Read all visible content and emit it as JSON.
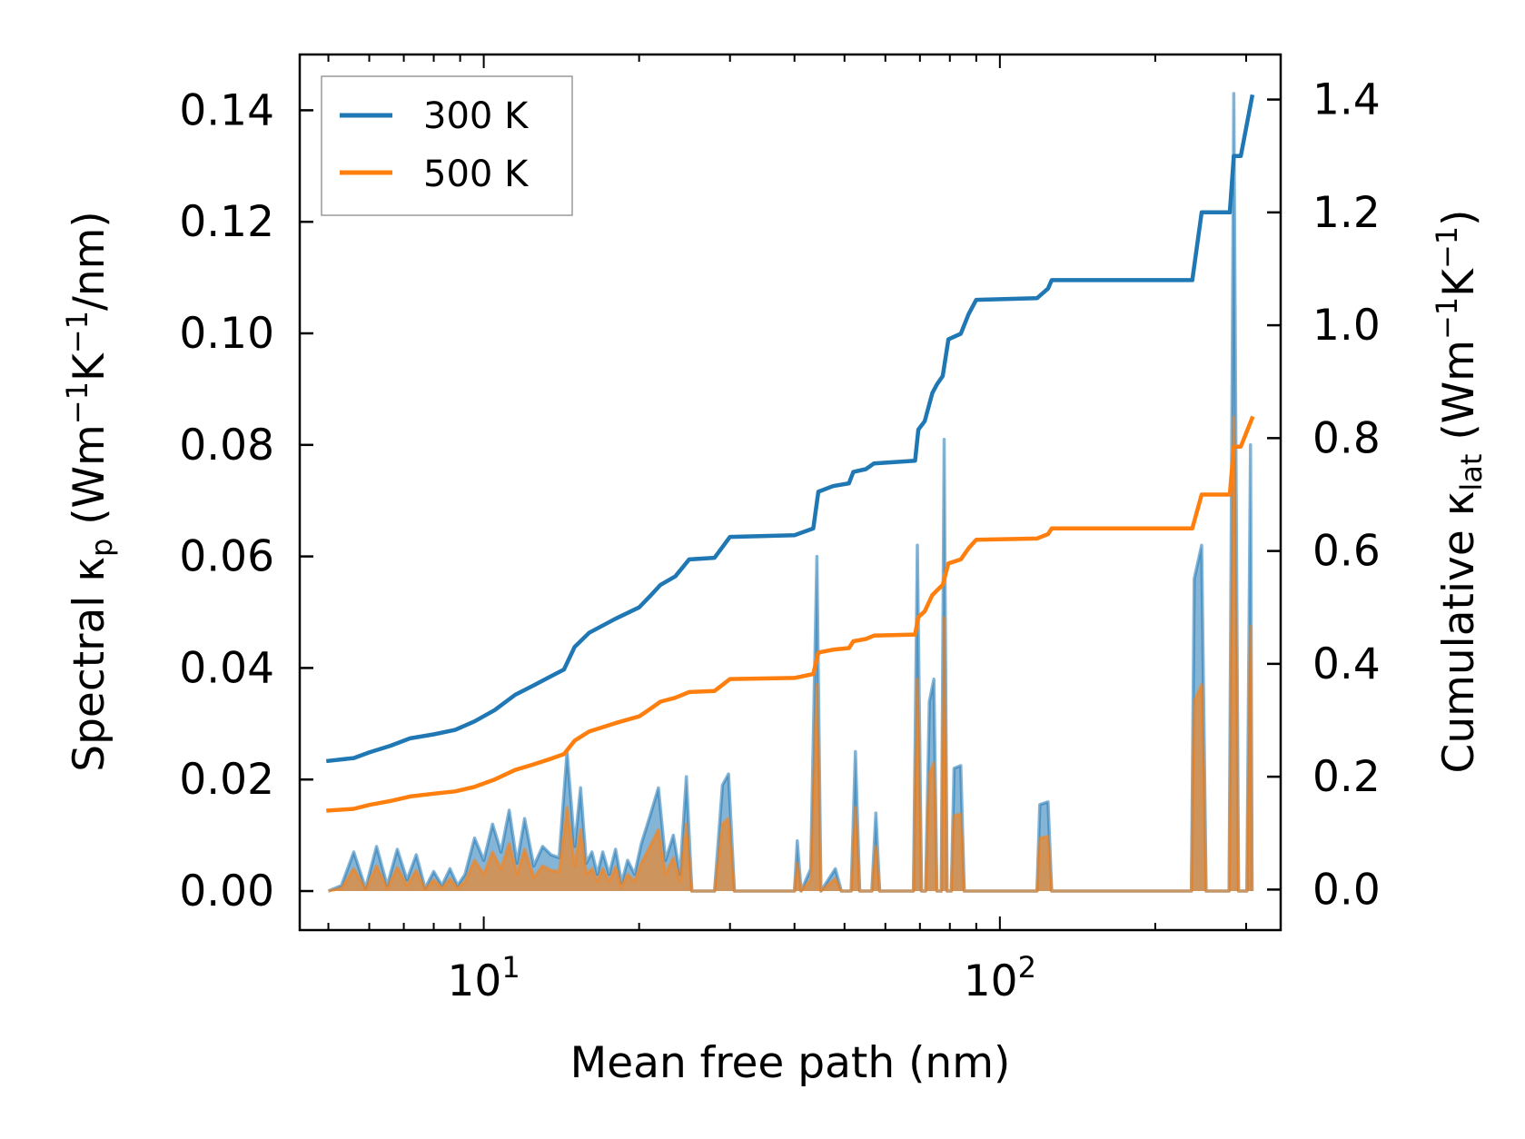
{
  "chart_data": {
    "type": "line+area",
    "xlabel": "Mean free path (nm)",
    "xscale": "log",
    "xlim": [
      4.4,
      350
    ],
    "x_tick_labels": [
      {
        "value": 10,
        "base": "10",
        "exp": "1"
      },
      {
        "value": 100,
        "base": "10",
        "exp": "2"
      }
    ],
    "ylabel_left": {
      "pre": "Spectral κ",
      "sub": "p",
      "mid": " (Wm",
      "sup1": "−1",
      "k": "K",
      "sup2": "−1",
      "post": "/nm)"
    },
    "ylabel_right": {
      "pre": "Cumulative κ",
      "sub": "lat",
      "mid": " (Wm",
      "sup1": "−1",
      "k": "K",
      "sup2": "−1",
      "post": ")"
    },
    "ylim_left": [
      -0.007,
      0.15
    ],
    "ylim_right": [
      -0.0718,
      1.4798
    ],
    "left_ticks": [
      {
        "value": 0.0,
        "label": "0.00"
      },
      {
        "value": 0.02,
        "label": "0.02"
      },
      {
        "value": 0.04,
        "label": "0.04"
      },
      {
        "value": 0.06,
        "label": "0.06"
      },
      {
        "value": 0.08,
        "label": "0.08"
      },
      {
        "value": 0.1,
        "label": "0.10"
      },
      {
        "value": 0.12,
        "label": "0.12"
      },
      {
        "value": 0.14,
        "label": "0.14"
      }
    ],
    "right_ticks": [
      {
        "value": 0.0,
        "label": "0.0"
      },
      {
        "value": 0.2,
        "label": "0.2"
      },
      {
        "value": 0.4,
        "label": "0.4"
      },
      {
        "value": 0.6,
        "label": "0.6"
      },
      {
        "value": 0.8,
        "label": "0.8"
      },
      {
        "value": 1.0,
        "label": "1.0"
      },
      {
        "value": 1.2,
        "label": "1.2"
      },
      {
        "value": 1.4,
        "label": "1.4"
      }
    ],
    "legend": {
      "position": "upper-left",
      "entries": [
        {
          "label": "300 K",
          "color": "#1f77b4"
        },
        {
          "label": "500 K",
          "color": "#ff7f0e"
        }
      ]
    },
    "series": [
      {
        "name": "300 K",
        "color": "#1f77b4",
        "spectral_axis": "left",
        "spectral": [
          [
            5.0,
            0.0
          ],
          [
            5.3,
            0.001
          ],
          [
            5.6,
            0.007
          ],
          [
            5.9,
            0.0005
          ],
          [
            6.2,
            0.008
          ],
          [
            6.5,
            0.001
          ],
          [
            6.8,
            0.0075
          ],
          [
            7.1,
            0.002
          ],
          [
            7.4,
            0.0065
          ],
          [
            7.7,
            0.0005
          ],
          [
            8.0,
            0.0035
          ],
          [
            8.3,
            0.001
          ],
          [
            8.6,
            0.004
          ],
          [
            8.9,
            0.001
          ],
          [
            9.2,
            0.003
          ],
          [
            9.6,
            0.0095
          ],
          [
            10.0,
            0.0055
          ],
          [
            10.4,
            0.012
          ],
          [
            10.8,
            0.007
          ],
          [
            11.2,
            0.0145
          ],
          [
            11.6,
            0.005
          ],
          [
            12.0,
            0.013
          ],
          [
            12.5,
            0.0045
          ],
          [
            13.0,
            0.008
          ],
          [
            13.5,
            0.0065
          ],
          [
            14.0,
            0.006
          ],
          [
            14.5,
            0.025
          ],
          [
            15.0,
            0.008
          ],
          [
            15.4,
            0.0185
          ],
          [
            15.8,
            0.005
          ],
          [
            16.2,
            0.007
          ],
          [
            16.6,
            0.003
          ],
          [
            17.0,
            0.007
          ],
          [
            17.5,
            0.003
          ],
          [
            18.0,
            0.0075
          ],
          [
            18.5,
            0.0015
          ],
          [
            19.0,
            0.0055
          ],
          [
            19.6,
            0.003
          ],
          [
            20.2,
            0.0085
          ],
          [
            21.0,
            0.0135
          ],
          [
            21.8,
            0.0185
          ],
          [
            22.5,
            0.0055
          ],
          [
            23.3,
            0.01
          ],
          [
            24.0,
            0.003
          ],
          [
            24.7,
            0.0205
          ],
          [
            25.3,
            0.0
          ],
          [
            28.0,
            0.0
          ],
          [
            29.0,
            0.019
          ],
          [
            29.8,
            0.021
          ],
          [
            30.6,
            0.0
          ],
          [
            40.0,
            0.0
          ],
          [
            40.5,
            0.009
          ],
          [
            41.2,
            0.0
          ],
          [
            43.0,
            0.004
          ],
          [
            44.2,
            0.06
          ],
          [
            45.0,
            0.0
          ],
          [
            48.0,
            0.004
          ],
          [
            49.3,
            0.0
          ],
          [
            51.5,
            0.0
          ],
          [
            52.5,
            0.025
          ],
          [
            53.5,
            0.0
          ],
          [
            56.5,
            0.0
          ],
          [
            57.5,
            0.014
          ],
          [
            58.5,
            0.0
          ],
          [
            68.0,
            0.0
          ],
          [
            69.2,
            0.062
          ],
          [
            70.5,
            0.0
          ],
          [
            71.8,
            0.0
          ],
          [
            73.0,
            0.034
          ],
          [
            74.5,
            0.038
          ],
          [
            75.5,
            0.0
          ],
          [
            77.0,
            0.0
          ],
          [
            78.0,
            0.081
          ],
          [
            79.0,
            0.0
          ],
          [
            80.5,
            0.0
          ],
          [
            81.5,
            0.022
          ],
          [
            84.0,
            0.0225
          ],
          [
            85.3,
            0.0
          ],
          [
            118.0,
            0.0
          ],
          [
            119.5,
            0.0155
          ],
          [
            124.0,
            0.016
          ],
          [
            126.0,
            0.0
          ],
          [
            235.0,
            0.0
          ],
          [
            238.0,
            0.056
          ],
          [
            246.0,
            0.062
          ],
          [
            251.0,
            0.0
          ],
          [
            278.0,
            0.0
          ],
          [
            284.0,
            0.143
          ],
          [
            290.0,
            0.0
          ],
          [
            301.0,
            0.0
          ],
          [
            306.0,
            0.08
          ],
          [
            308.0,
            0.0
          ]
        ],
        "cumulative_axis": "right",
        "cumulative": [
          [
            5.0,
            0.228
          ],
          [
            5.6,
            0.233
          ],
          [
            6.0,
            0.243
          ],
          [
            6.6,
            0.255
          ],
          [
            7.2,
            0.268
          ],
          [
            8.0,
            0.275
          ],
          [
            8.8,
            0.283
          ],
          [
            9.6,
            0.298
          ],
          [
            10.5,
            0.318
          ],
          [
            11.5,
            0.345
          ],
          [
            12.5,
            0.362
          ],
          [
            13.5,
            0.378
          ],
          [
            14.3,
            0.39
          ],
          [
            15.0,
            0.43
          ],
          [
            16.0,
            0.455
          ],
          [
            18.0,
            0.48
          ],
          [
            20.0,
            0.5
          ],
          [
            21.0,
            0.52
          ],
          [
            22.0,
            0.54
          ],
          [
            23.5,
            0.555
          ],
          [
            25.0,
            0.585
          ],
          [
            28.0,
            0.588
          ],
          [
            30.0,
            0.625
          ],
          [
            40.0,
            0.628
          ],
          [
            43.5,
            0.64
          ],
          [
            44.5,
            0.705
          ],
          [
            47.5,
            0.715
          ],
          [
            51.0,
            0.72
          ],
          [
            52.0,
            0.74
          ],
          [
            55.0,
            0.745
          ],
          [
            57.0,
            0.755
          ],
          [
            68.5,
            0.76
          ],
          [
            69.5,
            0.815
          ],
          [
            71.5,
            0.83
          ],
          [
            74.0,
            0.88
          ],
          [
            75.5,
            0.895
          ],
          [
            77.5,
            0.91
          ],
          [
            79.5,
            0.975
          ],
          [
            84.0,
            0.985
          ],
          [
            87.0,
            1.02
          ],
          [
            90.0,
            1.045
          ],
          [
            118.0,
            1.048
          ],
          [
            124.0,
            1.065
          ],
          [
            126.0,
            1.08
          ],
          [
            236.0,
            1.08
          ],
          [
            246.0,
            1.2
          ],
          [
            279.0,
            1.2
          ],
          [
            284.0,
            1.3
          ],
          [
            293.0,
            1.3
          ],
          [
            308.0,
            1.405
          ]
        ]
      },
      {
        "name": "500 K",
        "color": "#ff7f0e",
        "spectral_axis": "left",
        "spectral": [
          [
            5.0,
            0.0
          ],
          [
            5.3,
            0.0005
          ],
          [
            5.6,
            0.004
          ],
          [
            5.9,
            0.0003
          ],
          [
            6.2,
            0.0045
          ],
          [
            6.5,
            0.0005
          ],
          [
            6.8,
            0.0042
          ],
          [
            7.1,
            0.001
          ],
          [
            7.4,
            0.0037
          ],
          [
            7.7,
            0.0003
          ],
          [
            8.0,
            0.002
          ],
          [
            8.3,
            0.0005
          ],
          [
            8.6,
            0.0022
          ],
          [
            8.9,
            0.0005
          ],
          [
            9.2,
            0.0017
          ],
          [
            9.6,
            0.0055
          ],
          [
            10.0,
            0.003
          ],
          [
            10.4,
            0.007
          ],
          [
            10.8,
            0.004
          ],
          [
            11.2,
            0.0085
          ],
          [
            11.6,
            0.003
          ],
          [
            12.0,
            0.0075
          ],
          [
            12.5,
            0.0025
          ],
          [
            13.0,
            0.0045
          ],
          [
            13.5,
            0.0037
          ],
          [
            14.0,
            0.0035
          ],
          [
            14.5,
            0.015
          ],
          [
            15.0,
            0.0045
          ],
          [
            15.4,
            0.011
          ],
          [
            15.8,
            0.003
          ],
          [
            16.2,
            0.004
          ],
          [
            16.6,
            0.0017
          ],
          [
            17.0,
            0.004
          ],
          [
            17.5,
            0.0017
          ],
          [
            18.0,
            0.0043
          ],
          [
            18.5,
            0.0008
          ],
          [
            19.0,
            0.003
          ],
          [
            19.6,
            0.0017
          ],
          [
            20.2,
            0.005
          ],
          [
            21.0,
            0.008
          ],
          [
            21.8,
            0.011
          ],
          [
            22.5,
            0.003
          ],
          [
            23.3,
            0.006
          ],
          [
            24.0,
            0.0017
          ],
          [
            24.7,
            0.012
          ],
          [
            25.3,
            0.0
          ],
          [
            28.0,
            0.0
          ],
          [
            29.0,
            0.012
          ],
          [
            29.8,
            0.013
          ],
          [
            30.6,
            0.0
          ],
          [
            40.0,
            0.0
          ],
          [
            40.5,
            0.005
          ],
          [
            41.2,
            0.0
          ],
          [
            43.0,
            0.002
          ],
          [
            44.2,
            0.037
          ],
          [
            45.0,
            0.0
          ],
          [
            48.0,
            0.0022
          ],
          [
            49.3,
            0.0
          ],
          [
            51.5,
            0.0
          ],
          [
            52.5,
            0.015
          ],
          [
            53.5,
            0.0
          ],
          [
            56.5,
            0.0
          ],
          [
            57.5,
            0.008
          ],
          [
            58.5,
            0.0
          ],
          [
            68.0,
            0.0
          ],
          [
            69.2,
            0.038
          ],
          [
            70.5,
            0.0
          ],
          [
            71.8,
            0.0
          ],
          [
            73.0,
            0.021
          ],
          [
            74.5,
            0.023
          ],
          [
            75.5,
            0.0
          ],
          [
            77.0,
            0.0
          ],
          [
            78.0,
            0.049
          ],
          [
            79.0,
            0.0
          ],
          [
            80.5,
            0.0
          ],
          [
            81.5,
            0.0135
          ],
          [
            84.0,
            0.0138
          ],
          [
            85.3,
            0.0
          ],
          [
            118.0,
            0.0
          ],
          [
            119.5,
            0.0095
          ],
          [
            124.0,
            0.0098
          ],
          [
            126.0,
            0.0
          ],
          [
            235.0,
            0.0
          ],
          [
            238.0,
            0.034
          ],
          [
            246.0,
            0.037
          ],
          [
            251.0,
            0.0
          ],
          [
            278.0,
            0.0
          ],
          [
            284.0,
            0.085
          ],
          [
            290.0,
            0.0
          ],
          [
            301.0,
            0.0
          ],
          [
            306.0,
            0.0475
          ],
          [
            308.0,
            0.0
          ]
        ],
        "cumulative_axis": "right",
        "cumulative": [
          [
            5.0,
            0.14
          ],
          [
            5.6,
            0.143
          ],
          [
            6.0,
            0.15
          ],
          [
            6.6,
            0.157
          ],
          [
            7.2,
            0.165
          ],
          [
            8.0,
            0.17
          ],
          [
            8.8,
            0.174
          ],
          [
            9.6,
            0.182
          ],
          [
            10.5,
            0.195
          ],
          [
            11.5,
            0.212
          ],
          [
            12.5,
            0.222
          ],
          [
            13.5,
            0.232
          ],
          [
            14.3,
            0.24
          ],
          [
            15.0,
            0.264
          ],
          [
            16.0,
            0.28
          ],
          [
            18.0,
            0.295
          ],
          [
            20.0,
            0.307
          ],
          [
            21.0,
            0.32
          ],
          [
            22.0,
            0.333
          ],
          [
            23.5,
            0.34
          ],
          [
            25.0,
            0.35
          ],
          [
            28.0,
            0.352
          ],
          [
            30.0,
            0.373
          ],
          [
            40.0,
            0.375
          ],
          [
            43.5,
            0.382
          ],
          [
            44.5,
            0.42
          ],
          [
            47.5,
            0.425
          ],
          [
            51.0,
            0.428
          ],
          [
            52.0,
            0.44
          ],
          [
            55.0,
            0.444
          ],
          [
            57.0,
            0.45
          ],
          [
            68.5,
            0.452
          ],
          [
            69.5,
            0.483
          ],
          [
            71.5,
            0.493
          ],
          [
            74.0,
            0.522
          ],
          [
            75.5,
            0.53
          ],
          [
            77.5,
            0.54
          ],
          [
            79.5,
            0.578
          ],
          [
            84.0,
            0.585
          ],
          [
            87.0,
            0.605
          ],
          [
            90.0,
            0.62
          ],
          [
            118.0,
            0.622
          ],
          [
            124.0,
            0.63
          ],
          [
            126.0,
            0.64
          ],
          [
            236.0,
            0.64
          ],
          [
            246.0,
            0.7
          ],
          [
            279.0,
            0.7
          ],
          [
            284.0,
            0.785
          ],
          [
            293.0,
            0.785
          ],
          [
            308.0,
            0.835
          ]
        ]
      }
    ]
  }
}
